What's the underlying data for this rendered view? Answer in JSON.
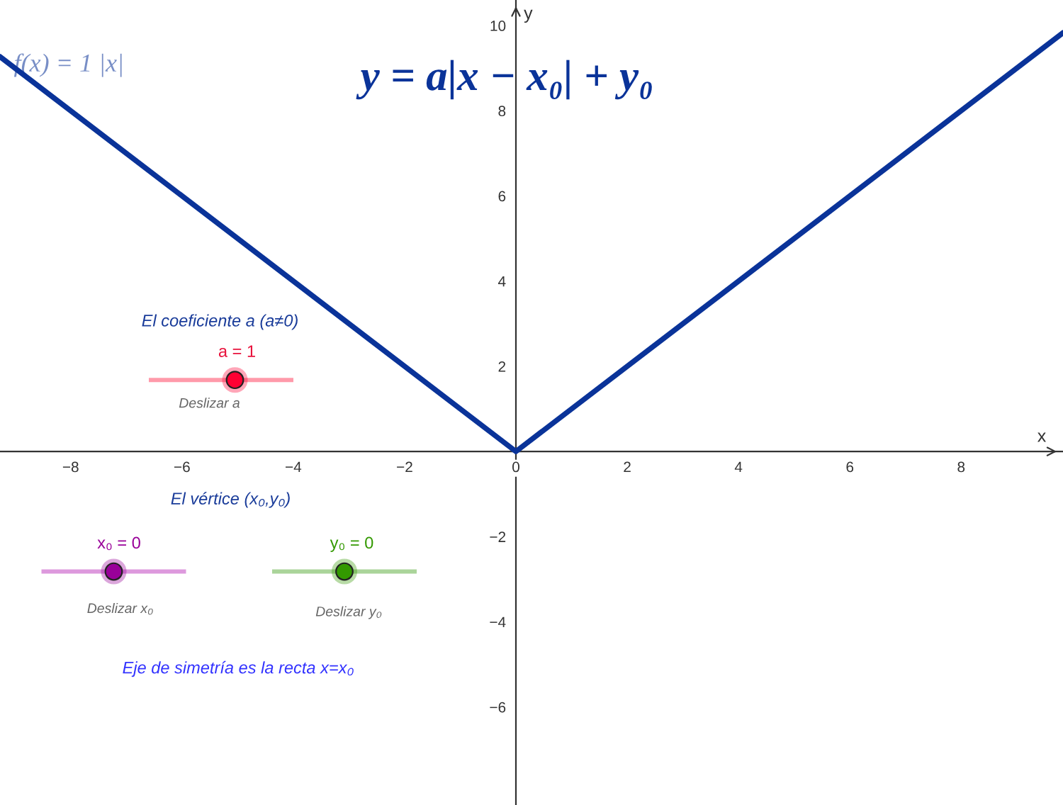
{
  "chart_data": {
    "type": "line",
    "title": "y = a|x − x₀| + y₀",
    "xlabel": "x",
    "ylabel": "y",
    "series": [
      {
        "name": "f(x) = 1 |x|",
        "color": "#0a3399",
        "x": [
          -9.27,
          0,
          9.83
        ],
        "values": [
          9.27,
          0,
          9.83
        ]
      }
    ],
    "xlim": [
      -9.27,
      9.83
    ],
    "ylim": [
      -8.3,
      10.6
    ],
    "xticks": [
      -8,
      -6,
      -4,
      -2,
      0,
      2,
      4,
      6,
      8
    ],
    "yticks": [
      -6,
      -4,
      -2,
      2,
      4,
      6,
      8,
      10
    ],
    "grid": false,
    "legend": false,
    "marker": "none",
    "line_style": "solid",
    "annotations": [
      "El coeficiente a (a≠0)",
      "a = 1",
      "Deslizar a",
      "El vértice (x₀,y₀)",
      "x₀ = 0",
      "Deslizar x₀",
      "y₀ = 0",
      "Deslizar y₀",
      "Eje de simetría es la recta x=x₀"
    ]
  }
}
